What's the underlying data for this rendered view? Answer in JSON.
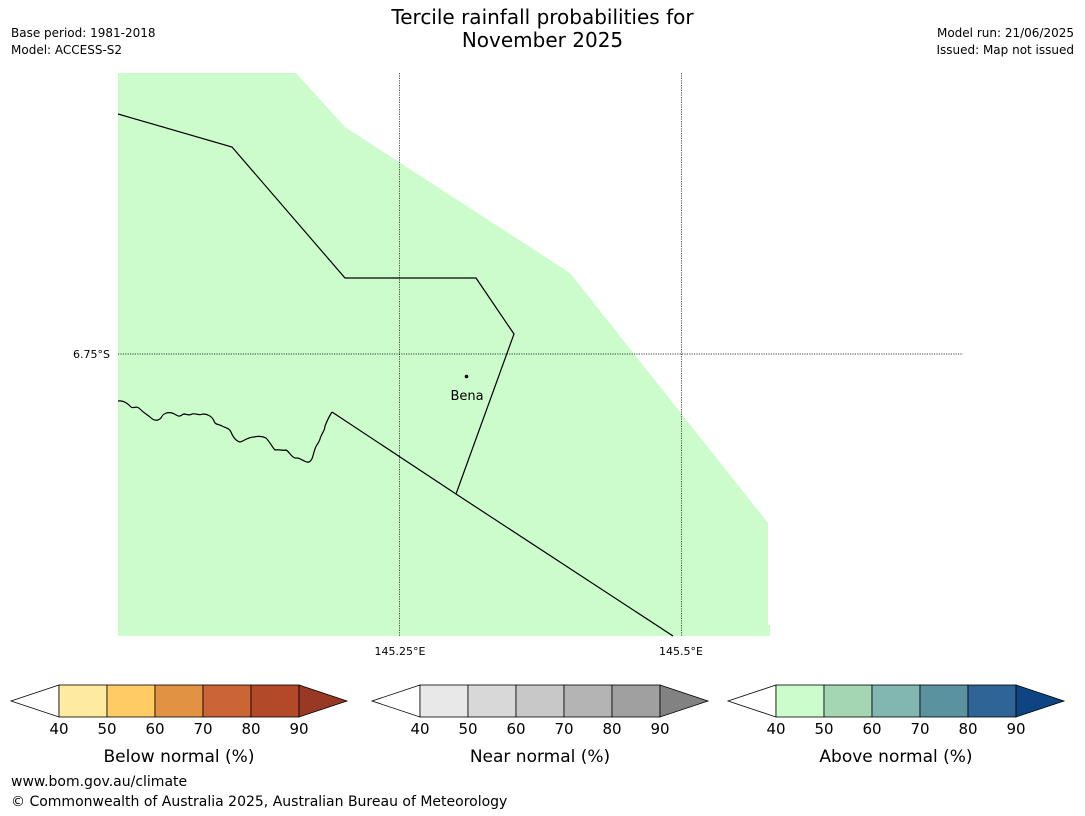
{
  "header": {
    "title_line1": "Tercile rainfall probabilities for",
    "title_line2": "November 2025",
    "base_period": "Base period: 1981-2018",
    "model": "Model: ACCESS-S2",
    "model_run": "Model run: 21/06/2025",
    "issued": "Issued: Map not issued"
  },
  "map": {
    "lat_label": "6.75°S",
    "lon_labels": [
      "145.25°E",
      "145.5°E"
    ],
    "place_name": "Bena",
    "fill_color": "#ccfccc",
    "fill_category": "Above normal",
    "fill_range": "40-50"
  },
  "legends": [
    {
      "title": "Below normal (%)",
      "ticks": [
        "40",
        "50",
        "60",
        "70",
        "80",
        "90"
      ],
      "colors": [
        "#ffeba0",
        "#fecb65",
        "#e19243",
        "#cc6535",
        "#b24a29"
      ],
      "arrow_color": "#973925"
    },
    {
      "title": "Near normal (%)",
      "ticks": [
        "40",
        "50",
        "60",
        "70",
        "80",
        "90"
      ],
      "colors": [
        "#e8e8e8",
        "#d8d8d8",
        "#c8c8c8",
        "#b4b4b4",
        "#a0a0a0"
      ],
      "arrow_color": "#828282"
    },
    {
      "title": "Above normal (%)",
      "ticks": [
        "40",
        "50",
        "60",
        "70",
        "80",
        "90"
      ],
      "colors": [
        "#ccfccc",
        "#a4d6b4",
        "#82b6b0",
        "#5a92a0",
        "#2e6496"
      ],
      "arrow_color": "#0e4482"
    }
  ],
  "footer": {
    "url": "www.bom.gov.au/climate",
    "copyright": "© Commonwealth of Australia 2025, Australian Bureau of Meteorology"
  }
}
